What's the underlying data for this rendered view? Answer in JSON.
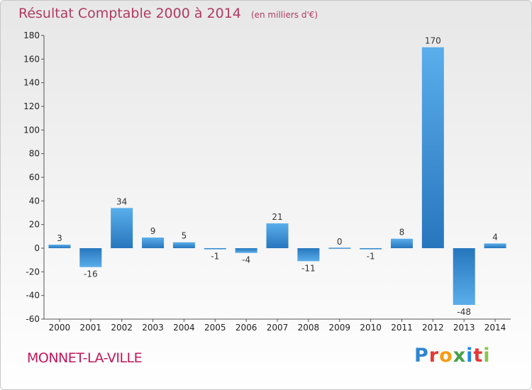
{
  "chart_data": {
    "type": "bar",
    "title": "Résultat Comptable 2000 à 2014",
    "subtitle": "(en milliers d'€)",
    "categories": [
      "2000",
      "2001",
      "2002",
      "2003",
      "2004",
      "2005",
      "2006",
      "2007",
      "2008",
      "2009",
      "2010",
      "2011",
      "2012",
      "2013",
      "2014"
    ],
    "values": [
      3,
      -16,
      34,
      9,
      5,
      -1,
      -4,
      21,
      -11,
      0,
      -1,
      8,
      170,
      -48,
      4
    ],
    "data_labels": [
      "3",
      "-16",
      "34",
      "9",
      "5",
      "-1",
      "-4",
      "21",
      "-11",
      "0",
      "-1",
      "8",
      "170",
      "-48",
      "4"
    ],
    "ylim": [
      -60,
      180
    ],
    "yticks": [
      -60,
      -40,
      -20,
      0,
      20,
      40,
      60,
      80,
      100,
      120,
      140,
      160,
      180
    ],
    "xlabel": "",
    "ylabel": "",
    "grid": false,
    "bar_color": "#3a8fd6"
  },
  "commune": "MONNET-LA-VILLE",
  "brand": {
    "letters": [
      "P",
      "r",
      "o",
      "x",
      "i",
      "t",
      "i"
    ],
    "colors": [
      "#2f86d0",
      "#e53935",
      "#f39c12",
      "#43a047",
      "#1e88e5",
      "#e53935",
      "#8bc34a"
    ]
  }
}
